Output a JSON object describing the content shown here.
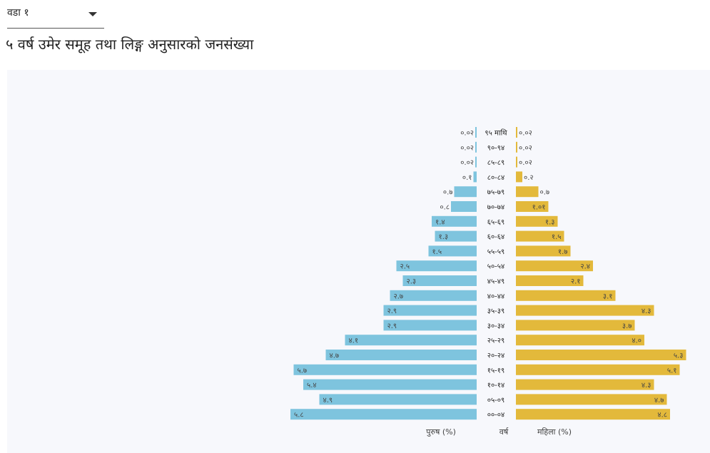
{
  "ward_select": {
    "value": "वडा १"
  },
  "page_title": "५ वर्ष उमेर समूह तथा लिङ्ग अनुसारको जनसंख्या",
  "colors": {
    "male": "#7ec4de",
    "female": "#e3b93b",
    "panel": "#f7f8fc"
  },
  "chart_data": {
    "type": "bar",
    "orientation": "horizontal-pyramid",
    "age_groups": [
      "९५ माथि",
      "९०-९४",
      "८५-८९",
      "८०-८४",
      "७५-७९",
      "७०-७४",
      "६५-६९",
      "६०-६४",
      "५५-५९",
      "५०-५४",
      "४५-४९",
      "४०-४४",
      "३५-३९",
      "३०-३४",
      "२५-२९",
      "२०-२४",
      "१५-१९",
      "१०-१४",
      "०५-०९",
      "००-०४"
    ],
    "series": [
      {
        "name": "पुरुष (%)",
        "values": [
          0.02,
          0.02,
          0.02,
          0.1,
          0.7,
          0.8,
          1.4,
          1.3,
          1.5,
          2.5,
          2.3,
          2.7,
          2.9,
          2.9,
          4.1,
          4.7,
          5.7,
          5.4,
          4.9,
          5.8
        ],
        "labels": [
          "०.०२",
          "०.०२",
          "०.०२",
          "०.१",
          "०.७",
          "०.८",
          "१.४",
          "१.३",
          "१.५",
          "२.५",
          "२.३",
          "२.७",
          "२.९",
          "२.९",
          "४.१",
          "४.७",
          "५.७",
          "५.४",
          "४.९",
          "५.८"
        ]
      },
      {
        "name": "महिला (%)",
        "values": [
          0.02,
          0.02,
          0.02,
          0.2,
          0.7,
          1.01,
          1.3,
          1.5,
          1.7,
          2.4,
          2.1,
          3.1,
          4.3,
          3.7,
          4.0,
          5.3,
          5.1,
          4.3,
          4.7,
          4.8
        ],
        "labels": [
          "०.०२",
          "०.०२",
          "०.०२",
          "०.२",
          "०.७",
          "१.०१",
          "१.३",
          "१.५",
          "१.७",
          "२.४",
          "२.१",
          "३.१",
          "४.३",
          "३.७",
          "४.०",
          "५.३",
          "५.१",
          "४.३",
          "४.७",
          "४.८"
        ]
      }
    ],
    "male_xlabel": "पुरुष (%)",
    "center_label": "वर्ष",
    "female_xlabel": "महिला (%)",
    "max_value": 6
  }
}
